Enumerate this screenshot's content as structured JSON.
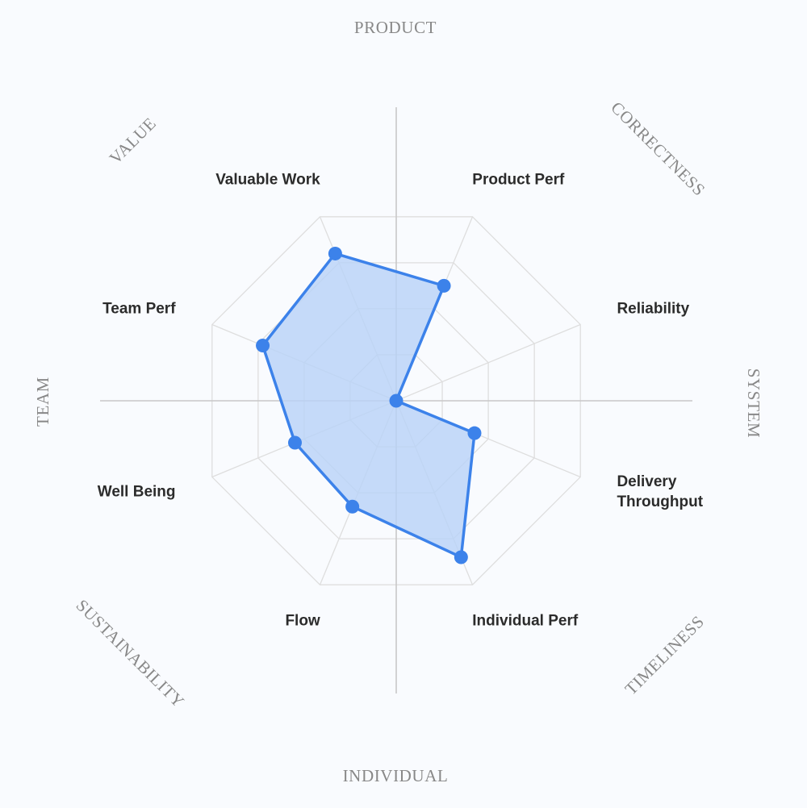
{
  "chart_data": {
    "type": "radar",
    "max": 4,
    "levels": 4,
    "categories": [
      "Product Perf",
      "Reliability",
      "Delivery Throughput",
      "Individual Perf",
      "Flow",
      "Well Being",
      "Team Perf",
      "Valuable Work"
    ],
    "category_lines": [
      [
        "Product Perf"
      ],
      [
        "Reliability"
      ],
      [
        "Delivery",
        "Throughput"
      ],
      [
        "Individual Perf"
      ],
      [
        "Flow"
      ],
      [
        "Well Being"
      ],
      [
        "Team Perf"
      ],
      [
        "Valuable Work"
      ]
    ],
    "values": [
      2.5,
      0,
      1.7,
      3.4,
      2.3,
      2.2,
      2.9,
      3.2
    ],
    "axis_labels": {
      "top": "PRODUCT",
      "right": "SYSTEM",
      "bottom": "INDIVIDUAL",
      "left": "TEAM"
    },
    "diagonal_labels": {
      "top_right": "CORRECTNESS",
      "bottom_right": "TIMELINESS",
      "bottom_left": "SUSTAINABILITY",
      "top_left": "VALUE"
    },
    "colors": {
      "series": "#3c82ea",
      "fill": "#b8d2f7",
      "grid": "#dedede",
      "axis": "#c8c8c8",
      "group_label": "#888888",
      "category_label": "#2b2b2b"
    }
  }
}
